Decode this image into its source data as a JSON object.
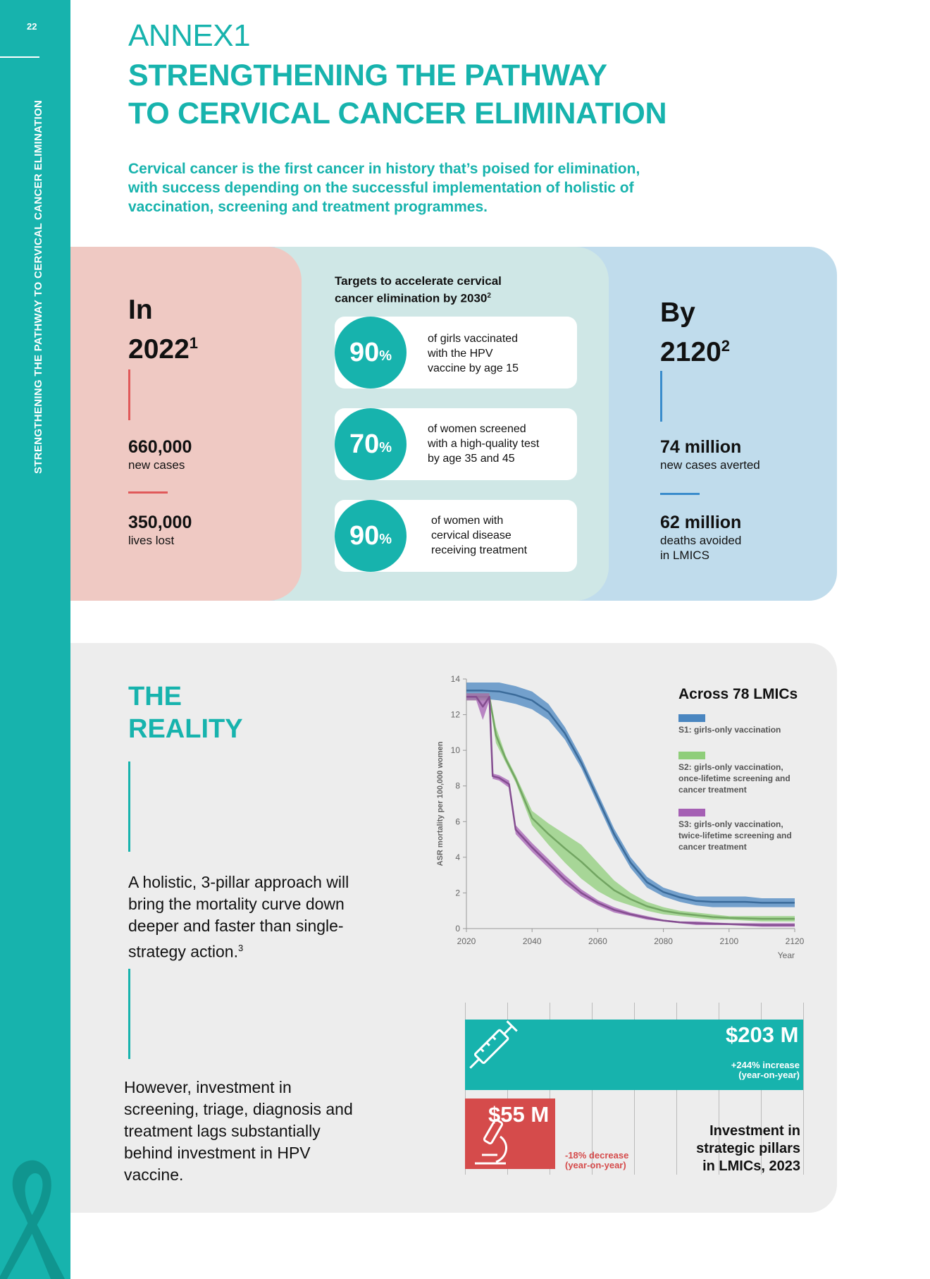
{
  "sidebar": {
    "page_number": "22",
    "running_title": "STRENGTHENING THE PATHWAY TO CERVICAL CANCER ELIMINATION"
  },
  "header": {
    "annex": "ANNEX1",
    "title_line1": "STRENGTHENING THE PATHWAY",
    "title_line2": "TO CERVICAL CANCER ELIMINATION",
    "intro_line1": "Cervical cancer is the first cancer in history that’s poised for elimination,",
    "intro_line2": "with success depending on the successful implementation of holistic of",
    "intro_line3": "vaccination, screening and treatment programmes."
  },
  "left_stats": {
    "label_in": "In",
    "year": "2022",
    "ref": "1",
    "stat1_value": "660,000",
    "stat1_label": "new cases",
    "stat2_value": "350,000",
    "stat2_label": "lives lost"
  },
  "targets": {
    "title_line1": "Targets to accelerate cervical",
    "title_line2": "cancer elimination by 2030",
    "title_ref": "2",
    "items": [
      {
        "pct": "90",
        "sign": "%",
        "line1": "of girls vaccinated",
        "line2": "with the HPV",
        "line3": "vaccine by age 15"
      },
      {
        "pct": "70",
        "sign": "%",
        "line1": "of women screened",
        "line2": "with a high-quality test",
        "line3": "by age 35 and 45"
      },
      {
        "pct": "90",
        "sign": "%",
        "line1": "of women with",
        "line2": "cervical disease",
        "line3": "receiving treatment"
      }
    ]
  },
  "right_stats": {
    "label_by": "By",
    "year": "2120",
    "ref": "2",
    "stat1_value": "74 million",
    "stat1_label": "new cases averted",
    "stat2_value": "62 million",
    "stat2_label_line1": "deaths avoided",
    "stat2_label_line2": "in LMICS"
  },
  "reality": {
    "title_line1": "THE",
    "title_line2": "REALITY",
    "para1_line1": "A holistic, 3-pillar approach will",
    "para1_line2": "bring the mortality curve down",
    "para1_line3": "deeper and faster than single-",
    "para1_line4": "strategy action.",
    "para1_ref": "3",
    "para2_line1": "However, investment in",
    "para2_line2": "screening, triage, diagnosis and",
    "para2_line3": "treatment lags substantially",
    "para2_line4": "behind investment in HPV",
    "para2_line5": "vaccine."
  },
  "colors": {
    "teal": "#17b3ad",
    "s1": "#4a86c0",
    "s2": "#8fce7a",
    "s3": "#a560b4",
    "red": "#d54b4b"
  },
  "chart_data": [
    {
      "type": "line",
      "title": "Across 78 LMICs",
      "xlabel": "Year",
      "ylabel": "ASR mortality per 100,000 women",
      "xlim": [
        2020,
        2120
      ],
      "ylim": [
        0,
        14
      ],
      "x_ticks": [
        "2020",
        "2040",
        "2060",
        "2080",
        "2100",
        "2120"
      ],
      "y_ticks": [
        "0",
        "2",
        "4",
        "6",
        "8",
        "10",
        "12",
        "14"
      ],
      "legend": "top-right",
      "series": [
        {
          "name": "S1: girls-only vaccination",
          "color": "#4a86c0",
          "x": [
            2020,
            2025,
            2030,
            2035,
            2040,
            2045,
            2050,
            2055,
            2060,
            2065,
            2070,
            2075,
            2080,
            2085,
            2090,
            2095,
            2100,
            2105,
            2110,
            2115,
            2120
          ],
          "lower": [
            12.9,
            12.9,
            12.8,
            12.6,
            12.3,
            11.7,
            10.6,
            9.0,
            7.0,
            5.0,
            3.4,
            2.3,
            1.8,
            1.5,
            1.3,
            1.2,
            1.2,
            1.2,
            1.2,
            1.2,
            1.2
          ],
          "upper": [
            13.8,
            13.8,
            13.8,
            13.6,
            13.3,
            12.6,
            11.3,
            9.6,
            7.6,
            5.6,
            4.0,
            2.9,
            2.3,
            2.0,
            1.8,
            1.8,
            1.8,
            1.8,
            1.7,
            1.7,
            1.7
          ]
        },
        {
          "name": "S2: girls-only vaccination, once-lifetime screening and cancer treatment",
          "color": "#8fce7a",
          "x": [
            2020,
            2025,
            2027,
            2029,
            2032,
            2035,
            2040,
            2045,
            2050,
            2055,
            2060,
            2065,
            2070,
            2075,
            2080,
            2085,
            2090,
            2095,
            2100,
            2110,
            2120
          ],
          "lower": [
            12.8,
            12.8,
            12.8,
            10.4,
            9.3,
            8.2,
            5.8,
            4.7,
            3.7,
            2.8,
            2.1,
            1.6,
            1.3,
            1.0,
            0.8,
            0.7,
            0.6,
            0.5,
            0.5,
            0.4,
            0.4
          ],
          "upper": [
            13.2,
            13.2,
            13.2,
            11.3,
            9.7,
            8.6,
            6.6,
            5.9,
            5.3,
            4.7,
            3.7,
            2.7,
            2.0,
            1.5,
            1.2,
            1.0,
            0.9,
            0.8,
            0.7,
            0.7,
            0.7
          ]
        },
        {
          "name": "S3: girls-only vaccination, twice-lifetime screening and cancer treatment",
          "color": "#a560b4",
          "x": [
            2020,
            2023,
            2025,
            2027,
            2028,
            2030,
            2033,
            2035,
            2040,
            2045,
            2050,
            2055,
            2060,
            2065,
            2070,
            2075,
            2080,
            2085,
            2090,
            2100,
            2110,
            2120
          ],
          "lower": [
            12.8,
            12.8,
            11.7,
            12.8,
            8.4,
            8.3,
            7.9,
            5.3,
            4.3,
            3.4,
            2.5,
            1.8,
            1.3,
            0.9,
            0.7,
            0.5,
            0.4,
            0.3,
            0.2,
            0.2,
            0.1,
            0.1
          ],
          "upper": [
            13.2,
            13.2,
            13.2,
            13.2,
            8.7,
            8.6,
            8.3,
            5.8,
            4.8,
            3.9,
            3.0,
            2.2,
            1.6,
            1.2,
            0.9,
            0.7,
            0.5,
            0.4,
            0.4,
            0.3,
            0.3,
            0.3
          ]
        }
      ]
    },
    {
      "type": "bar",
      "title": "Investment in strategic pillars in LMICs, 2023",
      "categories": [
        "HPV vaccine",
        "Screening, triage, diagnosis and treatment"
      ],
      "values": [
        203,
        55
      ],
      "unit": "$ M",
      "value_labels": [
        "$203 M",
        "$55 M"
      ],
      "change_labels": [
        "+244% increase (year-on-year)",
        "-18% decrease (year-on-year)"
      ],
      "colors": [
        "#17b3ad",
        "#d54b4b"
      ],
      "icons": [
        "syringe-icon",
        "microscope-icon"
      ]
    }
  ],
  "investment": {
    "vaccine_value": "$203 M",
    "vaccine_change_line1": "+244% increase",
    "vaccine_change_line2": "(year-on-year)",
    "screening_value": "$55 M",
    "screening_change_line1": "-18% decrease",
    "screening_change_line2": "(year-on-year)",
    "title_line1": "Investment in",
    "title_line2": "strategic pillars",
    "title_line3": "in LMICs, 2023"
  }
}
